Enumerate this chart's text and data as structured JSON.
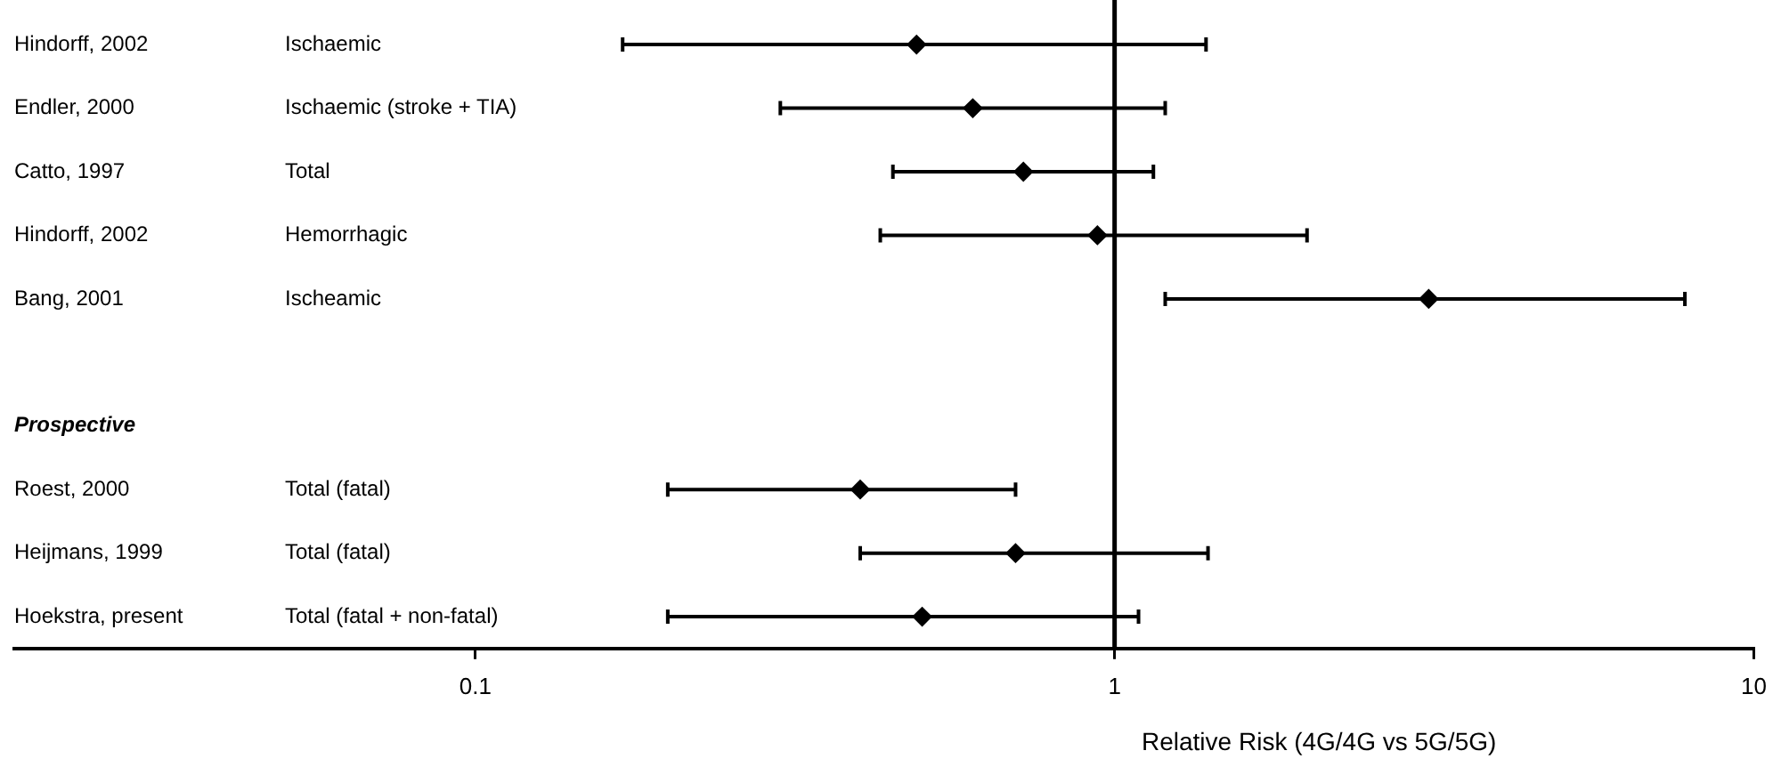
{
  "chart_data": {
    "type": "scatter",
    "orientation": "horizontal",
    "xlabel": "Relative Risk (4G/4G vs 5G/5G)",
    "categories": [
      "Hindorff, 2002",
      "Endler, 2000",
      "Catto, 1997",
      "Hindorff, 2002",
      "Bang, 2001",
      null,
      "Prospective",
      "Roest, 2000",
      "Heijmans, 1999",
      "Hoekstra, present"
    ],
    "values": [
      0.49,
      0.6,
      0.72,
      0.94,
      3.1,
      null,
      null,
      0.4,
      0.7,
      0.5
    ],
    "errors": [
      [
        0.17,
        1.39
      ],
      [
        0.3,
        1.2
      ],
      [
        0.45,
        1.15
      ],
      [
        0.43,
        2.0
      ],
      [
        1.2,
        7.8
      ],
      null,
      null,
      [
        0.2,
        0.7
      ],
      [
        0.4,
        1.4
      ],
      [
        0.2,
        1.09
      ]
    ],
    "annotations": [
      "Ischaemic",
      "Ischaemic (stroke + TIA)",
      "Total",
      "Hemorrhagic",
      "Ischeamic",
      "Total (fatal)",
      "Total (fatal)",
      "Total (fatal + non-fatal)"
    ],
    "color": "#000000",
    "marker": "diamond",
    "log": "x",
    "xlim": [
      0.019,
      10
    ],
    "xticks": [
      0.1,
      1,
      10
    ],
    "ref_lines": [
      {
        "axis": "x",
        "value": 1,
        "color": "#000000"
      }
    ],
    "grid": false,
    "legend": false
  }
}
